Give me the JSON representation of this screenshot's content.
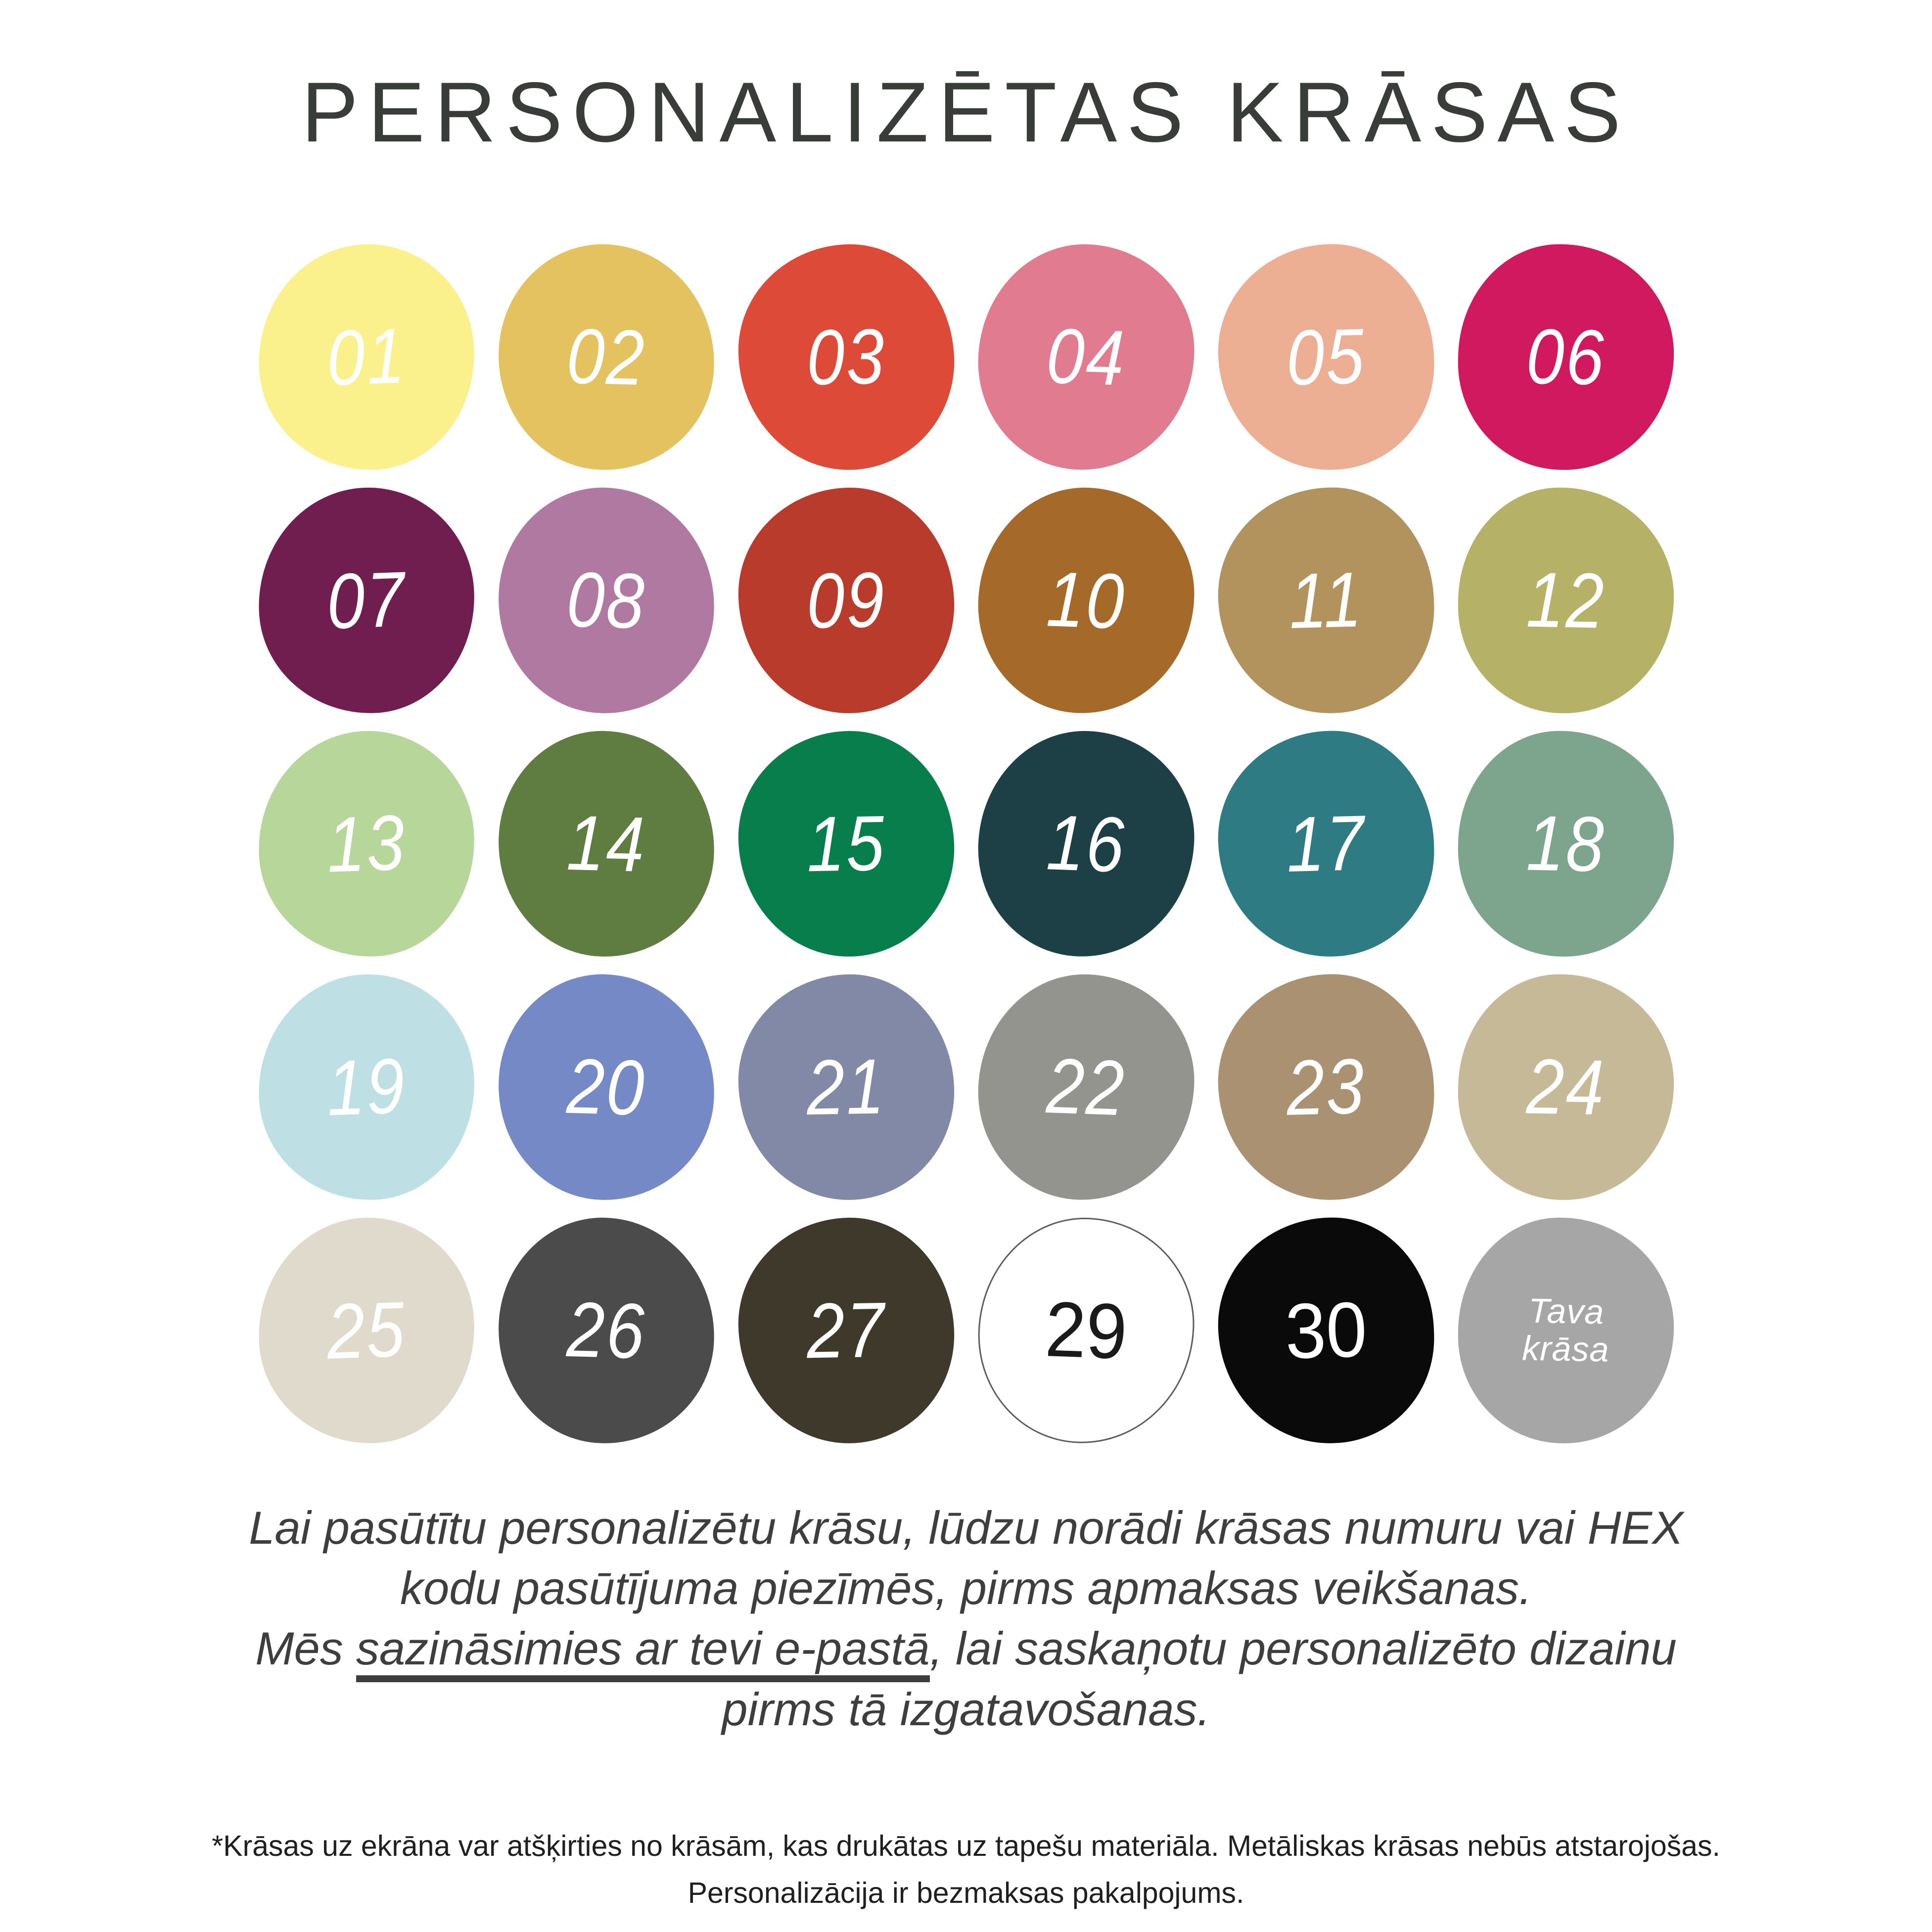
{
  "title": "PERSONALIZĒTAS KRĀSAS",
  "colors": {
    "background": "#FFFFFF",
    "title_text": "#383D39",
    "body_text": "#3E3E3E",
    "footnote_text": "#1F1F1F",
    "underline": "#3E3E3E",
    "white_swatch_outline": "#5D5D5D"
  },
  "palette": {
    "swatches": [
      {
        "id": "01",
        "color": "#FAF18C",
        "text_color": "#FFFFFF"
      },
      {
        "id": "02",
        "color": "#E4C25F",
        "text_color": "#FFFFFF"
      },
      {
        "id": "03",
        "color": "#DD4A38",
        "text_color": "#FFFFFF"
      },
      {
        "id": "04",
        "color": "#E07B90",
        "text_color": "#FFFFFF"
      },
      {
        "id": "05",
        "color": "#ECAF93",
        "text_color": "#FFFFFF"
      },
      {
        "id": "06",
        "color": "#D0195F",
        "text_color": "#FFFFFF"
      },
      {
        "id": "07",
        "color": "#701D50",
        "text_color": "#FFFFFF"
      },
      {
        "id": "08",
        "color": "#B079A2",
        "text_color": "#FFFFFF"
      },
      {
        "id": "09",
        "color": "#B93B2C",
        "text_color": "#FFFFFF"
      },
      {
        "id": "10",
        "color": "#A56A2A",
        "text_color": "#FFFFFF"
      },
      {
        "id": "11",
        "color": "#B2935E",
        "text_color": "#FFFFFF"
      },
      {
        "id": "12",
        "color": "#B5B267",
        "text_color": "#FFFFFF"
      },
      {
        "id": "13",
        "color": "#B7D69A",
        "text_color": "#FFFFFF"
      },
      {
        "id": "14",
        "color": "#5F7D40",
        "text_color": "#FFFFFF"
      },
      {
        "id": "15",
        "color": "#097E4D",
        "text_color": "#FFFFFF"
      },
      {
        "id": "16",
        "color": "#1C4046",
        "text_color": "#FFFFFF"
      },
      {
        "id": "17",
        "color": "#2E7B83",
        "text_color": "#FFFFFF"
      },
      {
        "id": "18",
        "color": "#7DA48D",
        "text_color": "#FFFFFF"
      },
      {
        "id": "19",
        "color": "#BEE0E4",
        "text_color": "#FFFFFF"
      },
      {
        "id": "20",
        "color": "#7489C6",
        "text_color": "#FFFFFF"
      },
      {
        "id": "21",
        "color": "#8289A6",
        "text_color": "#FFFFFF"
      },
      {
        "id": "22",
        "color": "#93948E",
        "text_color": "#FFFFFF"
      },
      {
        "id": "23",
        "color": "#AA9171",
        "text_color": "#FFFFFF"
      },
      {
        "id": "24",
        "color": "#C6B997",
        "text_color": "#FFFFFF"
      },
      {
        "id": "25",
        "color": "#E0DACC",
        "text_color": "#FFFFFF"
      },
      {
        "id": "26",
        "color": "#4B4B4B",
        "text_color": "#FFFFFF"
      },
      {
        "id": "27",
        "color": "#3E392B",
        "text_color": "#FFFFFF"
      },
      {
        "id": "29",
        "color": "#FFFFFF",
        "text_color": "#1A1A1A",
        "outlined": true,
        "upright": true
      },
      {
        "id": "30",
        "color": "#0A0A0A",
        "text_color": "#FFFFFF",
        "upright": true
      },
      {
        "id": "custom",
        "color": "#A6A6A6",
        "text_color": "#FFFFFF",
        "label_lines": [
          "Tava",
          "krāsa"
        ]
      }
    ]
  },
  "instructions": {
    "line1": "Lai pasūtītu personalizētu krāsu, lūdzu norādi krāsas numuru vai HEX",
    "line2": "kodu pasūtījuma piezīmēs, pirms apmaksas veikšanas.",
    "line3_pre": "Mēs ",
    "line3_underlined": "sazināsimies ar tevi e-pastā",
    "line3_post": ", lai saskaņotu personalizēto dizainu",
    "line4": "pirms tā izgatavošanas."
  },
  "footnote": {
    "line1": "*Krāsas uz ekrāna var atšķirties no krāsām, kas drukātas uz tapešu materiāla. Metāliskas krāsas nebūs atstarojošas.",
    "line2": "Personalizācija ir bezmaksas pakalpojums."
  }
}
